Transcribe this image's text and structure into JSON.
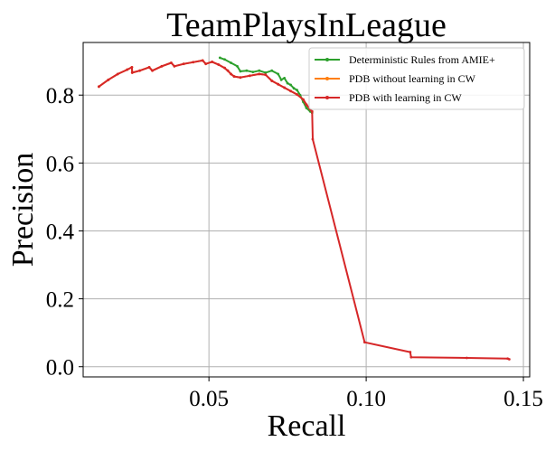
{
  "chart_data": {
    "type": "line",
    "title": "TeamPlaysInLeague",
    "xlabel": "Recall",
    "ylabel": "Precision",
    "xlim": [
      0.01,
      0.152
    ],
    "ylim": [
      -0.03,
      0.955
    ],
    "xticks": [
      0.05,
      0.1,
      0.15
    ],
    "xtick_labels": [
      "0.05",
      "0.10",
      "0.15"
    ],
    "yticks": [
      0.0,
      0.2,
      0.4,
      0.6,
      0.8
    ],
    "ytick_labels": [
      "0.0",
      "0.2",
      "0.4",
      "0.6",
      "0.8"
    ],
    "grid": true,
    "legend_position": "top-right",
    "series": [
      {
        "name": "Deterministic Rules from AMIE+",
        "color": "#2ca02c",
        "points": [
          [
            0.0535,
            0.91
          ],
          [
            0.055,
            0.905
          ],
          [
            0.057,
            0.895
          ],
          [
            0.059,
            0.885
          ],
          [
            0.06,
            0.87
          ],
          [
            0.062,
            0.872
          ],
          [
            0.064,
            0.868
          ],
          [
            0.066,
            0.872
          ],
          [
            0.068,
            0.866
          ],
          [
            0.07,
            0.872
          ],
          [
            0.072,
            0.862
          ],
          [
            0.073,
            0.845
          ],
          [
            0.074,
            0.85
          ],
          [
            0.075,
            0.835
          ],
          [
            0.076,
            0.83
          ],
          [
            0.077,
            0.82
          ],
          [
            0.078,
            0.815
          ],
          [
            0.079,
            0.8
          ],
          [
            0.08,
            0.78
          ],
          [
            0.081,
            0.762
          ],
          [
            0.0822,
            0.752
          ],
          [
            0.0828,
            0.748
          ]
        ]
      },
      {
        "name": "PDB without learning in CW",
        "color": "#ff7f0e",
        "points": [
          [
            0.015,
            0.825
          ],
          [
            0.018,
            0.845
          ],
          [
            0.021,
            0.862
          ],
          [
            0.024,
            0.875
          ],
          [
            0.0255,
            0.882
          ],
          [
            0.0256,
            0.866
          ],
          [
            0.028,
            0.872
          ],
          [
            0.031,
            0.882
          ],
          [
            0.032,
            0.872
          ],
          [
            0.035,
            0.885
          ],
          [
            0.038,
            0.895
          ],
          [
            0.039,
            0.885
          ],
          [
            0.042,
            0.892
          ],
          [
            0.045,
            0.897
          ],
          [
            0.048,
            0.902
          ],
          [
            0.049,
            0.892
          ],
          [
            0.051,
            0.898
          ],
          [
            0.053,
            0.89
          ],
          [
            0.055,
            0.88
          ],
          [
            0.056,
            0.872
          ],
          [
            0.057,
            0.862
          ],
          [
            0.058,
            0.855
          ],
          [
            0.06,
            0.852
          ],
          [
            0.063,
            0.857
          ],
          [
            0.066,
            0.862
          ],
          [
            0.068,
            0.86
          ],
          [
            0.07,
            0.842
          ],
          [
            0.072,
            0.832
          ],
          [
            0.074,
            0.822
          ],
          [
            0.076,
            0.812
          ],
          [
            0.078,
            0.802
          ],
          [
            0.08,
            0.787
          ],
          [
            0.081,
            0.772
          ],
          [
            0.0822,
            0.758
          ],
          [
            0.0828,
            0.752
          ]
        ]
      },
      {
        "name": "PDB with learning in CW",
        "color": "#d62728",
        "points": [
          [
            0.015,
            0.825
          ],
          [
            0.018,
            0.845
          ],
          [
            0.021,
            0.862
          ],
          [
            0.024,
            0.875
          ],
          [
            0.0255,
            0.882
          ],
          [
            0.0256,
            0.866
          ],
          [
            0.028,
            0.872
          ],
          [
            0.031,
            0.882
          ],
          [
            0.032,
            0.872
          ],
          [
            0.035,
            0.885
          ],
          [
            0.038,
            0.895
          ],
          [
            0.039,
            0.885
          ],
          [
            0.042,
            0.892
          ],
          [
            0.045,
            0.897
          ],
          [
            0.048,
            0.902
          ],
          [
            0.049,
            0.892
          ],
          [
            0.051,
            0.898
          ],
          [
            0.053,
            0.89
          ],
          [
            0.055,
            0.88
          ],
          [
            0.056,
            0.872
          ],
          [
            0.057,
            0.862
          ],
          [
            0.058,
            0.855
          ],
          [
            0.06,
            0.852
          ],
          [
            0.063,
            0.857
          ],
          [
            0.066,
            0.862
          ],
          [
            0.068,
            0.86
          ],
          [
            0.07,
            0.842
          ],
          [
            0.072,
            0.832
          ],
          [
            0.074,
            0.822
          ],
          [
            0.076,
            0.812
          ],
          [
            0.078,
            0.802
          ],
          [
            0.08,
            0.787
          ],
          [
            0.081,
            0.772
          ],
          [
            0.0822,
            0.758
          ],
          [
            0.0828,
            0.752
          ],
          [
            0.083,
            0.67
          ],
          [
            0.0995,
            0.072
          ],
          [
            0.114,
            0.043
          ],
          [
            0.1143,
            0.028
          ],
          [
            0.132,
            0.026
          ],
          [
            0.145,
            0.024
          ],
          [
            0.1455,
            0.022
          ]
        ]
      }
    ]
  }
}
